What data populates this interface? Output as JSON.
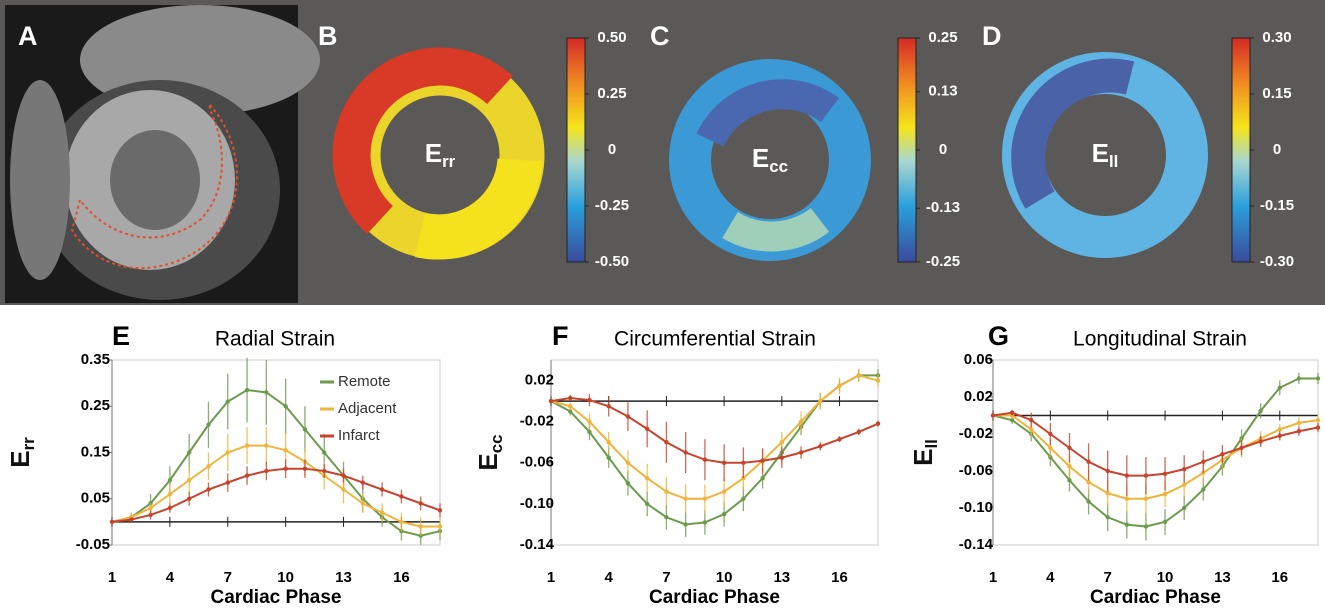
{
  "panels": [
    {
      "letter": "A"
    },
    {
      "letter": "B",
      "label": "E",
      "label_sub": "rr",
      "lim": [
        -0.5,
        0.5
      ],
      "colorbar_ticks": [
        {
          "value": 0.5,
          "label": "0.50"
        },
        0.25,
        0,
        -0.25,
        {
          "value": -0.5,
          "label": "-0.50"
        }
      ]
    },
    {
      "letter": "C",
      "label": "E",
      "label_sub": "cc",
      "lim": [
        -0.25,
        0.25
      ],
      "colorbar_ticks": [
        0.25,
        0.13,
        0,
        -0.13,
        -0.25
      ]
    },
    {
      "letter": "D",
      "label": "E",
      "label_sub": "ll",
      "lim": [
        -0.3,
        0.3
      ],
      "colorbar_ticks": [
        {
          "value": 0.3,
          "label": "0.30"
        },
        0.15,
        0,
        -0.15,
        {
          "value": -0.3,
          "label": "-0.30"
        }
      ]
    }
  ],
  "chart_data": [
    {
      "type": "line",
      "letter": "E",
      "title": "Radial Strain",
      "ylabel": "E",
      "ylabel_sub": "rr",
      "xlabel": "Cardiac Phase",
      "legend": "upper right",
      "x": [
        1,
        2,
        3,
        4,
        5,
        6,
        7,
        8,
        9,
        10,
        11,
        12,
        13,
        14,
        15,
        16,
        17,
        18
      ],
      "xlim": [
        1,
        18
      ],
      "xticks": [
        1,
        4,
        7,
        10,
        13,
        16
      ],
      "ylim": [
        -0.05,
        0.35
      ],
      "yticks": [
        -0.05,
        0.05,
        0.15,
        0.25,
        0.35
      ],
      "series": [
        {
          "name": "Remote",
          "color": "#6d9b4e",
          "values": [
            0,
            0.01,
            0.04,
            0.09,
            0.15,
            0.21,
            0.26,
            0.285,
            0.28,
            0.25,
            0.2,
            0.15,
            0.1,
            0.05,
            0.01,
            -0.02,
            -0.03,
            -0.02
          ],
          "errors": [
            0,
            0.01,
            0.02,
            0.03,
            0.04,
            0.05,
            0.06,
            0.07,
            0.07,
            0.06,
            0.05,
            0.04,
            0.03,
            0.03,
            0.02,
            0.02,
            0.02,
            0.02
          ]
        },
        {
          "name": "Adjacent",
          "color": "#f0b43c",
          "values": [
            0,
            0.01,
            0.03,
            0.06,
            0.09,
            0.12,
            0.15,
            0.165,
            0.165,
            0.155,
            0.13,
            0.1,
            0.07,
            0.04,
            0.02,
            0,
            -0.01,
            -0.01
          ],
          "errors": [
            0,
            0.01,
            0.01,
            0.02,
            0.03,
            0.03,
            0.04,
            0.04,
            0.04,
            0.04,
            0.03,
            0.03,
            0.03,
            0.02,
            0.02,
            0.02,
            0.02,
            0.02
          ]
        },
        {
          "name": "Infarct",
          "color": "#c8432b",
          "values": [
            0,
            0.005,
            0.015,
            0.03,
            0.05,
            0.07,
            0.085,
            0.1,
            0.11,
            0.115,
            0.115,
            0.11,
            0.1,
            0.085,
            0.07,
            0.055,
            0.04,
            0.025
          ],
          "errors": [
            0,
            0.005,
            0.01,
            0.01,
            0.015,
            0.015,
            0.02,
            0.02,
            0.02,
            0.02,
            0.02,
            0.015,
            0.015,
            0.015,
            0.015,
            0.015,
            0.015,
            0.015
          ]
        }
      ]
    },
    {
      "type": "line",
      "letter": "F",
      "title": "Circumferential Strain",
      "ylabel": "E",
      "ylabel_sub": "cc",
      "xlabel": "Cardiac Phase",
      "x": [
        1,
        2,
        3,
        4,
        5,
        6,
        7,
        8,
        9,
        10,
        11,
        12,
        13,
        14,
        15,
        16,
        17,
        18
      ],
      "xlim": [
        1,
        18
      ],
      "xticks": [
        1,
        4,
        7,
        10,
        13,
        16
      ],
      "ylim": [
        -0.14,
        0.04
      ],
      "yticks": [
        0.02,
        -0.02,
        -0.06,
        {
          "value": -0.1,
          "label": "-0.10"
        },
        -0.14
      ],
      "series": [
        {
          "color": "#6d9b4e",
          "values": [
            0,
            -0.01,
            -0.03,
            -0.055,
            -0.08,
            -0.1,
            -0.113,
            -0.12,
            -0.118,
            -0.11,
            -0.095,
            -0.075,
            -0.05,
            -0.025,
            0,
            0.015,
            0.025,
            0.025
          ],
          "errors": [
            0,
            0.004,
            0.008,
            0.01,
            0.012,
            0.012,
            0.012,
            0.012,
            0.012,
            0.012,
            0.012,
            0.01,
            0.01,
            0.008,
            0.008,
            0.006,
            0.006,
            0.006
          ]
        },
        {
          "color": "#f0b43c",
          "values": [
            0,
            -0.005,
            -0.02,
            -0.04,
            -0.06,
            -0.075,
            -0.088,
            -0.095,
            -0.095,
            -0.088,
            -0.075,
            -0.058,
            -0.04,
            -0.02,
            0,
            0.015,
            0.025,
            0.02
          ],
          "errors": [
            0,
            0.004,
            0.008,
            0.01,
            0.012,
            0.014,
            0.014,
            0.014,
            0.014,
            0.014,
            0.012,
            0.012,
            0.01,
            0.01,
            0.008,
            0.008,
            0.006,
            0.006
          ]
        },
        {
          "color": "#c8432b",
          "values": [
            0,
            0.003,
            0.001,
            -0.005,
            -0.015,
            -0.027,
            -0.04,
            -0.05,
            -0.057,
            -0.06,
            -0.06,
            -0.058,
            -0.055,
            -0.05,
            -0.044,
            -0.037,
            -0.03,
            -0.022
          ],
          "errors": [
            0,
            0.003,
            0.006,
            0.01,
            0.014,
            0.018,
            0.02,
            0.02,
            0.02,
            0.018,
            0.015,
            0.012,
            0.01,
            0.006,
            0.004,
            0.003,
            0.003,
            0.003
          ]
        }
      ]
    },
    {
      "type": "line",
      "letter": "G",
      "title": "Longitudinal Strain",
      "ylabel": "E",
      "ylabel_sub": "ll",
      "xlabel": "Cardiac Phase",
      "x": [
        1,
        2,
        3,
        4,
        5,
        6,
        7,
        8,
        9,
        10,
        11,
        12,
        13,
        14,
        15,
        16,
        17,
        18
      ],
      "xlim": [
        1,
        18
      ],
      "xticks": [
        1,
        4,
        7,
        10,
        13,
        16
      ],
      "ylim": [
        -0.14,
        0.06
      ],
      "yticks": [
        0.06,
        0.02,
        -0.02,
        -0.06,
        {
          "value": -0.1,
          "label": "-0.10"
        },
        -0.14
      ],
      "series": [
        {
          "color": "#6d9b4e",
          "values": [
            0,
            -0.005,
            -0.02,
            -0.045,
            -0.07,
            -0.093,
            -0.11,
            -0.118,
            -0.12,
            -0.115,
            -0.1,
            -0.08,
            -0.055,
            -0.025,
            0.005,
            0.03,
            0.04,
            0.04
          ],
          "errors": [
            0,
            0.004,
            0.008,
            0.01,
            0.012,
            0.014,
            0.015,
            0.015,
            0.015,
            0.014,
            0.013,
            0.012,
            0.01,
            0.01,
            0.008,
            0.008,
            0.006,
            0.006
          ]
        },
        {
          "color": "#f0b43c",
          "values": [
            0,
            0,
            -0.015,
            -0.035,
            -0.055,
            -0.072,
            -0.084,
            -0.09,
            -0.09,
            -0.085,
            -0.075,
            -0.062,
            -0.048,
            -0.035,
            -0.025,
            -0.015,
            -0.008,
            -0.005
          ],
          "errors": [
            0,
            0.004,
            0.008,
            0.01,
            0.012,
            0.014,
            0.015,
            0.015,
            0.015,
            0.014,
            0.013,
            0.012,
            0.01,
            0.01,
            0.008,
            0.006,
            0.006,
            0.006
          ]
        },
        {
          "color": "#c8432b",
          "values": [
            0,
            0.003,
            -0.005,
            -0.02,
            -0.035,
            -0.05,
            -0.06,
            -0.065,
            -0.065,
            -0.063,
            -0.058,
            -0.05,
            -0.042,
            -0.035,
            -0.028,
            -0.022,
            -0.017,
            -0.013
          ],
          "errors": [
            0,
            0.003,
            0.008,
            0.012,
            0.016,
            0.02,
            0.022,
            0.022,
            0.02,
            0.018,
            0.015,
            0.012,
            0.01,
            0.008,
            0.006,
            0.005,
            0.005,
            0.005
          ]
        }
      ]
    }
  ]
}
